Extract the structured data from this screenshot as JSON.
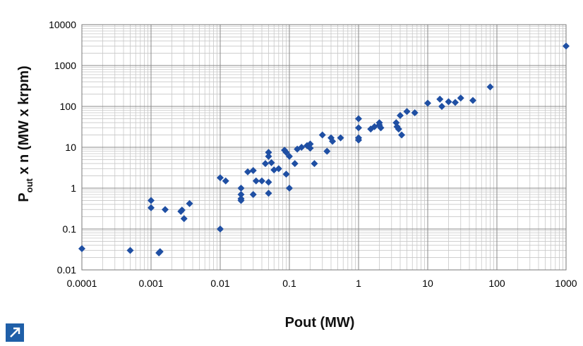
{
  "chart_data": {
    "type": "scatter",
    "title": "",
    "xlabel": "Pout (MW)",
    "ylabel_main": "P",
    "ylabel_sub": "out",
    "ylabel_rest": " x n (MW x krpm)",
    "x_scale": "log",
    "y_scale": "log",
    "xlim": [
      0.0001,
      1000
    ],
    "ylim": [
      0.01,
      10000
    ],
    "x_tick_labels": [
      "0.0001",
      "0.001",
      "0.01",
      "0.1",
      "1",
      "10",
      "100",
      "1000"
    ],
    "y_tick_labels": [
      "0.01",
      "0.1",
      "1",
      "10",
      "100",
      "1000",
      "10000"
    ],
    "grid": true,
    "legend": "none",
    "marker": "diamond",
    "color": "#1f4fa3",
    "points": [
      [
        0.0001,
        0.033
      ],
      [
        0.0005,
        0.03
      ],
      [
        0.001,
        0.5
      ],
      [
        0.001,
        0.33
      ],
      [
        0.0013,
        0.026
      ],
      [
        0.00135,
        0.028
      ],
      [
        0.0016,
        0.3
      ],
      [
        0.0027,
        0.27
      ],
      [
        0.0028,
        0.29
      ],
      [
        0.003,
        0.18
      ],
      [
        0.0036,
        0.42
      ],
      [
        0.01,
        0.1
      ],
      [
        0.01,
        1.8
      ],
      [
        0.012,
        1.5
      ],
      [
        0.02,
        1.0
      ],
      [
        0.02,
        0.7
      ],
      [
        0.02,
        0.55
      ],
      [
        0.02,
        0.5
      ],
      [
        0.025,
        2.5
      ],
      [
        0.03,
        2.7
      ],
      [
        0.03,
        0.7
      ],
      [
        0.033,
        1.5
      ],
      [
        0.04,
        1.5
      ],
      [
        0.045,
        4.0
      ],
      [
        0.05,
        1.4
      ],
      [
        0.05,
        0.75
      ],
      [
        0.05,
        7.5
      ],
      [
        0.05,
        6.0
      ],
      [
        0.055,
        4.2
      ],
      [
        0.06,
        2.8
      ],
      [
        0.07,
        3.0
      ],
      [
        0.085,
        8.5
      ],
      [
        0.09,
        7.5
      ],
      [
        0.09,
        2.2
      ],
      [
        0.1,
        6.0
      ],
      [
        0.1,
        1.0
      ],
      [
        0.12,
        4.0
      ],
      [
        0.13,
        9.0
      ],
      [
        0.15,
        10
      ],
      [
        0.18,
        11
      ],
      [
        0.2,
        12
      ],
      [
        0.2,
        9.5
      ],
      [
        0.23,
        4.0
      ],
      [
        0.3,
        20
      ],
      [
        0.35,
        8.0
      ],
      [
        0.4,
        17
      ],
      [
        0.42,
        14
      ],
      [
        0.55,
        17
      ],
      [
        1.0,
        50
      ],
      [
        1.0,
        30
      ],
      [
        1.0,
        17
      ],
      [
        1.0,
        15
      ],
      [
        1.5,
        28
      ],
      [
        1.7,
        32
      ],
      [
        2.0,
        40
      ],
      [
        2.0,
        35
      ],
      [
        2.1,
        30
      ],
      [
        3.5,
        40
      ],
      [
        3.6,
        32
      ],
      [
        3.8,
        28
      ],
      [
        4.0,
        60
      ],
      [
        4.2,
        20
      ],
      [
        5.0,
        75
      ],
      [
        6.5,
        70
      ],
      [
        10,
        120
      ],
      [
        15,
        150
      ],
      [
        16,
        100
      ],
      [
        20,
        130
      ],
      [
        25,
        125
      ],
      [
        30,
        160
      ],
      [
        45,
        140
      ],
      [
        80,
        300
      ],
      [
        1000,
        3000
      ]
    ]
  },
  "ui": {
    "expand_icon": "expand-arrow-icon",
    "accent": "#1f5fa8"
  }
}
